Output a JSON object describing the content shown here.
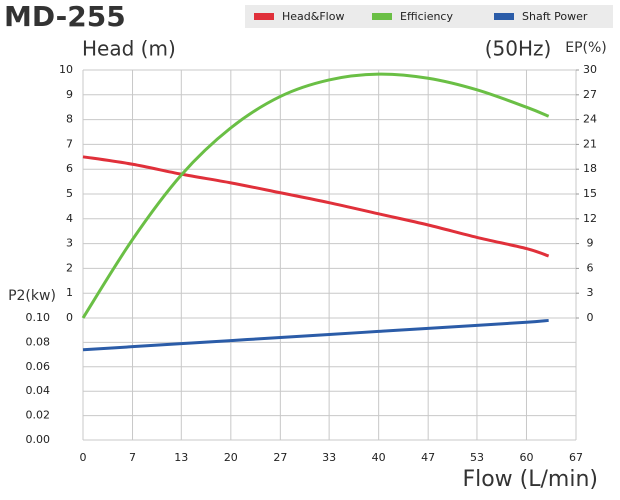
{
  "chart_data": {
    "type": "line",
    "title": "MD-255",
    "y_label": "Head (m)",
    "y2_label": "EP(%)",
    "p2_label": "P2(kw)",
    "x_label": "Flow (L/min)",
    "annotation": "(50Hz)",
    "x": [
      0,
      6.7,
      13.3,
      20,
      26.7,
      33.3,
      40,
      46.7,
      53.3,
      60,
      63
    ],
    "xlim": [
      0,
      66.7
    ],
    "xticks": [
      0,
      {
        "value": 6.7,
        "label": "7"
      },
      {
        "value": 13.3,
        "label": "13"
      },
      20,
      {
        "value": 26.7,
        "label": "27"
      },
      {
        "value": 33.3,
        "label": "33"
      },
      40,
      {
        "value": 46.7,
        "label": "47"
      },
      {
        "value": 53.3,
        "label": "53"
      },
      60,
      {
        "value": 66.7,
        "label": "67"
      }
    ],
    "ylim": [
      0,
      10
    ],
    "yticks": [
      0,
      1,
      2,
      3,
      4,
      5,
      6,
      7,
      8,
      9,
      10
    ],
    "y2lim": [
      0,
      30
    ],
    "y2ticks": [
      0,
      3,
      6,
      9,
      12,
      15,
      18,
      21,
      24,
      27,
      30
    ],
    "p2lim": [
      0,
      0.1
    ],
    "p2ticks": [
      {
        "value": 0,
        "label": "0.00"
      },
      {
        "value": 0.02,
        "label": "0.02"
      },
      {
        "value": 0.04,
        "label": "0.04"
      },
      {
        "value": 0.06,
        "label": "0.06"
      },
      {
        "value": 0.08,
        "label": "0.08"
      },
      {
        "value": 0.1,
        "label": "0.10"
      }
    ],
    "grid": true,
    "series": [
      {
        "name": "Head&Flow",
        "color": "#e0303a",
        "axis": "y",
        "values": [
          6.5,
          6.2,
          5.8,
          5.45,
          5.05,
          4.65,
          4.2,
          3.75,
          3.25,
          2.8,
          2.5
        ]
      },
      {
        "name": "Efficiency",
        "color": "#6abf45",
        "axis": "y2",
        "values": [
          0,
          9.5,
          17.3,
          23,
          26.8,
          28.8,
          29.5,
          29,
          27.6,
          25.5,
          24.4
        ]
      },
      {
        "name": "Shaft Power",
        "color": "#2b5ca8",
        "axis": "p2",
        "values": [
          0.074,
          0.0765,
          0.079,
          0.0815,
          0.084,
          0.0865,
          0.089,
          0.0915,
          0.094,
          0.0965,
          0.098
        ]
      }
    ]
  }
}
